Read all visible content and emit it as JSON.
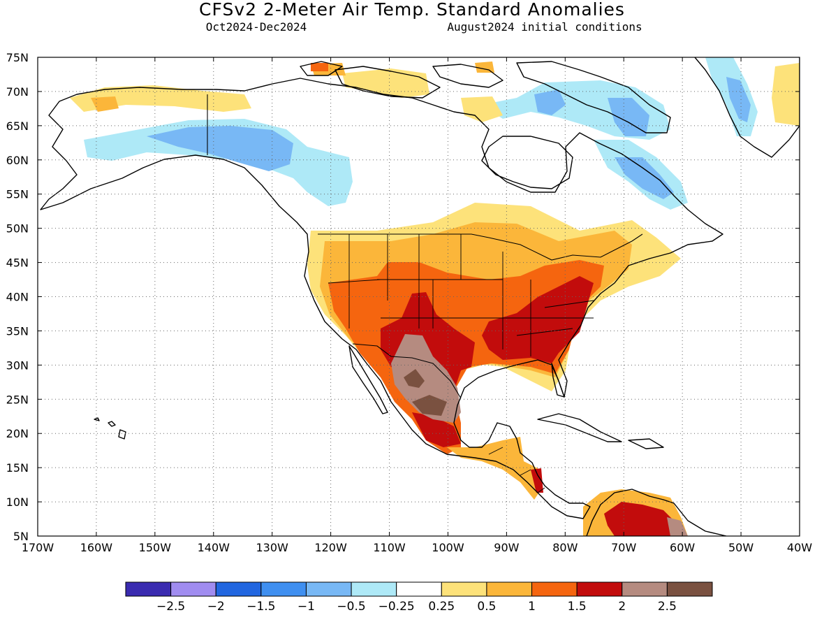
{
  "title": "CFSv2 2-Meter Air Temp. Standard Anomalies",
  "period": "Oct2024-Dec2024",
  "initial_conditions": "August2024 initial conditions",
  "map": {
    "lon_range": [
      -170,
      -40
    ],
    "lat_range": [
      5,
      75
    ],
    "lat_labels": [
      "75N",
      "70N",
      "65N",
      "60N",
      "55N",
      "50N",
      "45N",
      "40N",
      "35N",
      "30N",
      "25N",
      "20N",
      "15N",
      "10N",
      "5N"
    ],
    "lon_labels": [
      "170W",
      "160W",
      "150W",
      "140W",
      "130W",
      "120W",
      "110W",
      "100W",
      "90W",
      "80W",
      "70W",
      "60W",
      "50W",
      "40W"
    ],
    "grid": "dotted"
  },
  "colorbar": {
    "colors": [
      "#3a2bb0",
      "#a08cf0",
      "#2166e0",
      "#3f8ff0",
      "#78b8f5",
      "#aee9f7",
      "#ffffff",
      "#fde27a",
      "#fbb63a",
      "#f5650f",
      "#c20c0c",
      "#b58b80",
      "#7a5140"
    ],
    "labels": [
      "-2.5",
      "-2",
      "-1.5",
      "-1",
      "-0.5",
      "-0.25",
      "0.25",
      "0.5",
      "1",
      "1.5",
      "2",
      "2.5"
    ]
  },
  "chart_data": {
    "type": "heatmap",
    "title": "CFSv2 2-Meter Air Temp. Standard Anomalies",
    "subtitle": "Oct2024-Dec2024    August2024 initial conditions",
    "xlabel": "",
    "ylabel": "",
    "xlim": [
      -170,
      -40
    ],
    "ylim": [
      5,
      75
    ],
    "legend": "bottom",
    "levels": [
      -2.5,
      -2,
      -1.5,
      -1,
      -0.5,
      -0.25,
      0.25,
      0.5,
      1,
      1.5,
      2,
      2.5
    ],
    "regions": [
      {
        "region": "Southeastern US",
        "anomaly_range": [
          1.5,
          2
        ]
      },
      {
        "region": "Southwest US / Texas",
        "anomaly_range": [
          1,
          1.5
        ]
      },
      {
        "region": "Northern Mexico",
        "anomaly_range": [
          2,
          2.5
        ]
      },
      {
        "region": "Northern Plains / Great Lakes",
        "anomaly_range": [
          0.25,
          1
        ]
      },
      {
        "region": "Alaska / Yukon",
        "anomaly_range": [
          -1,
          -0.25
        ]
      },
      {
        "region": "Northeast Canada / Labrador",
        "anomaly_range": [
          -1,
          -0.25
        ]
      },
      {
        "region": "Northern Arctic coast",
        "anomaly_range": [
          0.25,
          1
        ]
      },
      {
        "region": "Northern South America",
        "anomaly_range": [
          1,
          2.5
        ]
      },
      {
        "region": "Central America",
        "anomaly_range": [
          0.5,
          2
        ]
      }
    ]
  }
}
